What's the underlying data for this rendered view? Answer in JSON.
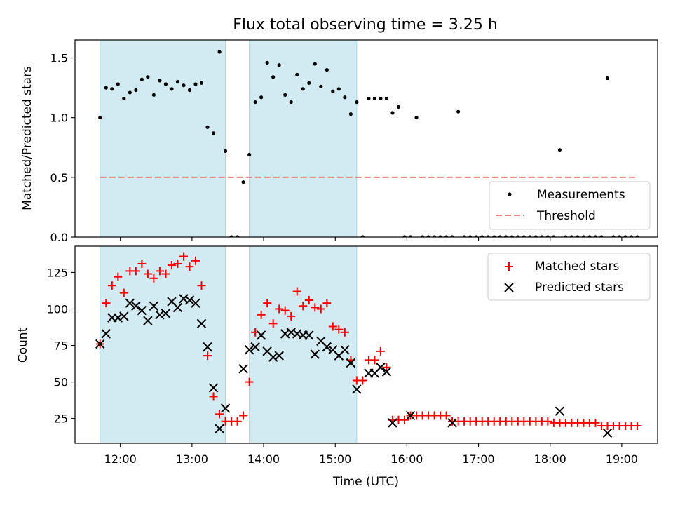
{
  "title": "Flux total observing time = 3.25 h",
  "chart_data": [
    {
      "type": "scatter",
      "ylabel": "Matched/Predicted stars",
      "xlabel": "",
      "xlim": [
        "11:22",
        "19:30"
      ],
      "ylim": [
        0,
        1.65
      ],
      "yticks": [
        "0.0",
        "0.5",
        "1.0",
        "1.5"
      ],
      "ytick_values": [
        0,
        0.5,
        1.0,
        1.5
      ],
      "grid": false,
      "legend_position": "lower-right",
      "shaded_intervals": [
        [
          "11:43",
          "13:28"
        ],
        [
          "13:48",
          "15:18"
        ]
      ],
      "shade_color": "#add8e6",
      "series": [
        {
          "name": "Measurements",
          "marker": "dot",
          "color": "#000000",
          "points": [
            [
              "11:43",
              1.0
            ],
            [
              "11:48",
              1.25
            ],
            [
              "11:53",
              1.24
            ],
            [
              "11:58",
              1.28
            ],
            [
              "12:03",
              1.16
            ],
            [
              "12:08",
              1.21
            ],
            [
              "12:13",
              1.23
            ],
            [
              "12:18",
              1.32
            ],
            [
              "12:23",
              1.34
            ],
            [
              "12:28",
              1.19
            ],
            [
              "12:33",
              1.31
            ],
            [
              "12:38",
              1.28
            ],
            [
              "12:43",
              1.24
            ],
            [
              "12:48",
              1.3
            ],
            [
              "12:53",
              1.27
            ],
            [
              "12:58",
              1.23
            ],
            [
              "13:03",
              1.28
            ],
            [
              "13:08",
              1.29
            ],
            [
              "13:13",
              0.92
            ],
            [
              "13:18",
              0.87
            ],
            [
              "13:23",
              1.55
            ],
            [
              "13:28",
              0.72
            ],
            [
              "13:33",
              0.0
            ],
            [
              "13:38",
              0.0
            ],
            [
              "13:43",
              0.46
            ],
            [
              "13:48",
              0.69
            ],
            [
              "13:53",
              1.13
            ],
            [
              "13:58",
              1.17
            ],
            [
              "14:03",
              1.46
            ],
            [
              "14:08",
              1.34
            ],
            [
              "14:13",
              1.44
            ],
            [
              "14:18",
              1.19
            ],
            [
              "14:23",
              1.13
            ],
            [
              "14:28",
              1.36
            ],
            [
              "14:33",
              1.24
            ],
            [
              "14:38",
              1.29
            ],
            [
              "14:43",
              1.45
            ],
            [
              "14:48",
              1.26
            ],
            [
              "14:53",
              1.4
            ],
            [
              "14:58",
              1.22
            ],
            [
              "15:03",
              1.24
            ],
            [
              "15:08",
              1.17
            ],
            [
              "15:13",
              1.03
            ],
            [
              "15:18",
              1.13
            ],
            [
              "15:23",
              0.0
            ],
            [
              "15:28",
              1.16
            ],
            [
              "15:33",
              1.16
            ],
            [
              "15:38",
              1.16
            ],
            [
              "15:43",
              1.16
            ],
            [
              "15:48",
              1.04
            ],
            [
              "15:53",
              1.09
            ],
            [
              "15:58",
              0.0
            ],
            [
              "16:03",
              0.0
            ],
            [
              "16:08",
              1.0
            ],
            [
              "16:13",
              0.0
            ],
            [
              "16:18",
              0.0
            ],
            [
              "16:23",
              0.0
            ],
            [
              "16:28",
              0.0
            ],
            [
              "16:33",
              0.0
            ],
            [
              "16:38",
              0.0
            ],
            [
              "16:43",
              1.05
            ],
            [
              "16:48",
              0.0
            ],
            [
              "16:53",
              0.0
            ],
            [
              "16:58",
              0.0
            ],
            [
              "17:03",
              0.0
            ],
            [
              "17:08",
              0.0
            ],
            [
              "17:13",
              0.0
            ],
            [
              "17:18",
              0.0
            ],
            [
              "17:23",
              0.0
            ],
            [
              "17:28",
              0.0
            ],
            [
              "17:33",
              0.0
            ],
            [
              "17:38",
              0.0
            ],
            [
              "17:43",
              0.0
            ],
            [
              "17:48",
              0.0
            ],
            [
              "17:53",
              0.0
            ],
            [
              "17:58",
              0.0
            ],
            [
              "18:03",
              0.0
            ],
            [
              "18:08",
              0.73
            ],
            [
              "18:13",
              0.0
            ],
            [
              "18:18",
              0.0
            ],
            [
              "18:23",
              0.0
            ],
            [
              "18:28",
              0.0
            ],
            [
              "18:33",
              0.0
            ],
            [
              "18:38",
              0.0
            ],
            [
              "18:43",
              0.0
            ],
            [
              "18:48",
              1.33
            ],
            [
              "18:53",
              0.0
            ],
            [
              "18:58",
              0.0
            ],
            [
              "19:03",
              0.0
            ],
            [
              "19:08",
              0.0
            ],
            [
              "19:13",
              0.0
            ]
          ]
        },
        {
          "name": "Threshold",
          "marker": "dashed-line",
          "color": "#f08080",
          "points": [
            [
              "11:43",
              0.5
            ],
            [
              "19:13",
              0.5
            ]
          ]
        }
      ]
    },
    {
      "type": "scatter",
      "ylabel": "Count",
      "xlabel": "Time (UTC)",
      "xlim": [
        "11:22",
        "19:30"
      ],
      "ylim": [
        8,
        143
      ],
      "yticks": [
        "25",
        "50",
        "75",
        "100",
        "125"
      ],
      "ytick_values": [
        25,
        50,
        75,
        100,
        125
      ],
      "xticks": [
        "12:00",
        "13:00",
        "14:00",
        "15:00",
        "16:00",
        "17:00",
        "18:00",
        "19:00"
      ],
      "grid": false,
      "legend_position": "upper-right",
      "shaded_intervals": [
        [
          "11:43",
          "13:28"
        ],
        [
          "13:48",
          "15:18"
        ]
      ],
      "shade_color": "#add8e6",
      "series": [
        {
          "name": "Matched stars",
          "marker": "plus",
          "color": "#ff0000",
          "points": [
            [
              "11:43",
              76
            ],
            [
              "11:48",
              104
            ],
            [
              "11:53",
              116
            ],
            [
              "11:58",
              122
            ],
            [
              "12:03",
              111
            ],
            [
              "12:08",
              126
            ],
            [
              "12:13",
              126
            ],
            [
              "12:18",
              131
            ],
            [
              "12:23",
              124
            ],
            [
              "12:28",
              121
            ],
            [
              "12:33",
              126
            ],
            [
              "12:38",
              124
            ],
            [
              "12:43",
              130
            ],
            [
              "12:48",
              131
            ],
            [
              "12:53",
              136
            ],
            [
              "12:58",
              129
            ],
            [
              "13:03",
              133
            ],
            [
              "13:08",
              116
            ],
            [
              "13:13",
              68
            ],
            [
              "13:18",
              40
            ],
            [
              "13:23",
              28
            ],
            [
              "13:28",
              23
            ],
            [
              "13:33",
              23
            ],
            [
              "13:38",
              23
            ],
            [
              "13:43",
              27
            ],
            [
              "13:48",
              50
            ],
            [
              "13:53",
              84
            ],
            [
              "13:58",
              96
            ],
            [
              "14:03",
              104
            ],
            [
              "14:08",
              90
            ],
            [
              "14:13",
              100
            ],
            [
              "14:18",
              99
            ],
            [
              "14:23",
              95
            ],
            [
              "14:28",
              112
            ],
            [
              "14:33",
              102
            ],
            [
              "14:38",
              106
            ],
            [
              "14:43",
              101
            ],
            [
              "14:48",
              100
            ],
            [
              "14:53",
              104
            ],
            [
              "14:58",
              88
            ],
            [
              "15:03",
              86
            ],
            [
              "15:08",
              84
            ],
            [
              "15:13",
              65
            ],
            [
              "15:18",
              51
            ],
            [
              "15:23",
              51
            ],
            [
              "15:28",
              65
            ],
            [
              "15:33",
              65
            ],
            [
              "15:38",
              71
            ],
            [
              "15:43",
              60
            ],
            [
              "15:48",
              24
            ],
            [
              "15:53",
              24
            ],
            [
              "15:58",
              24
            ],
            [
              "16:03",
              27
            ],
            [
              "16:08",
              27
            ],
            [
              "16:13",
              27
            ],
            [
              "16:18",
              27
            ],
            [
              "16:23",
              27
            ],
            [
              "16:28",
              27
            ],
            [
              "16:33",
              27
            ],
            [
              "16:38",
              23
            ],
            [
              "16:43",
              23
            ],
            [
              "16:48",
              23
            ],
            [
              "16:53",
              23
            ],
            [
              "16:58",
              23
            ],
            [
              "17:03",
              23
            ],
            [
              "17:08",
              23
            ],
            [
              "17:13",
              23
            ],
            [
              "17:18",
              23
            ],
            [
              "17:23",
              23
            ],
            [
              "17:28",
              23
            ],
            [
              "17:33",
              23
            ],
            [
              "17:38",
              23
            ],
            [
              "17:43",
              23
            ],
            [
              "17:48",
              23
            ],
            [
              "17:53",
              23
            ],
            [
              "17:58",
              23
            ],
            [
              "18:03",
              22
            ],
            [
              "18:08",
              22
            ],
            [
              "18:13",
              22
            ],
            [
              "18:18",
              22
            ],
            [
              "18:23",
              22
            ],
            [
              "18:28",
              22
            ],
            [
              "18:33",
              22
            ],
            [
              "18:38",
              22
            ],
            [
              "18:43",
              20
            ],
            [
              "18:48",
              20
            ],
            [
              "18:53",
              20
            ],
            [
              "18:58",
              20
            ],
            [
              "19:03",
              20
            ],
            [
              "19:08",
              20
            ],
            [
              "19:13",
              20
            ]
          ]
        },
        {
          "name": "Predicted stars",
          "marker": "x",
          "color": "#000000",
          "points": [
            [
              "11:43",
              76
            ],
            [
              "11:48",
              83
            ],
            [
              "11:53",
              94
            ],
            [
              "11:58",
              94
            ],
            [
              "12:03",
              95
            ],
            [
              "12:08",
              104
            ],
            [
              "12:13",
              102
            ],
            [
              "12:18",
              99
            ],
            [
              "12:23",
              92
            ],
            [
              "12:28",
              102
            ],
            [
              "12:33",
              96
            ],
            [
              "12:38",
              97
            ],
            [
              "12:43",
              105
            ],
            [
              "12:48",
              101
            ],
            [
              "12:53",
              107
            ],
            [
              "12:58",
              106
            ],
            [
              "13:03",
              104
            ],
            [
              "13:08",
              90
            ],
            [
              "13:13",
              74
            ],
            [
              "13:18",
              46
            ],
            [
              "13:23",
              18
            ],
            [
              "13:28",
              32
            ],
            [
              "13:43",
              59
            ],
            [
              "13:48",
              72
            ],
            [
              "13:53",
              74
            ],
            [
              "13:58",
              82
            ],
            [
              "14:03",
              71
            ],
            [
              "14:08",
              67
            ],
            [
              "14:13",
              68
            ],
            [
              "14:18",
              83
            ],
            [
              "14:23",
              84
            ],
            [
              "14:28",
              83
            ],
            [
              "14:33",
              82
            ],
            [
              "14:38",
              82
            ],
            [
              "14:43",
              69
            ],
            [
              "14:48",
              78
            ],
            [
              "14:53",
              74
            ],
            [
              "14:58",
              72
            ],
            [
              "15:03",
              68
            ],
            [
              "15:08",
              72
            ],
            [
              "15:13",
              63
            ],
            [
              "15:18",
              45
            ],
            [
              "15:28",
              56
            ],
            [
              "15:33",
              56
            ],
            [
              "15:38",
              60
            ],
            [
              "15:43",
              57
            ],
            [
              "15:48",
              22
            ],
            [
              "16:03",
              27
            ],
            [
              "16:38",
              22
            ],
            [
              "18:08",
              30
            ],
            [
              "18:48",
              15
            ]
          ]
        }
      ]
    }
  ]
}
